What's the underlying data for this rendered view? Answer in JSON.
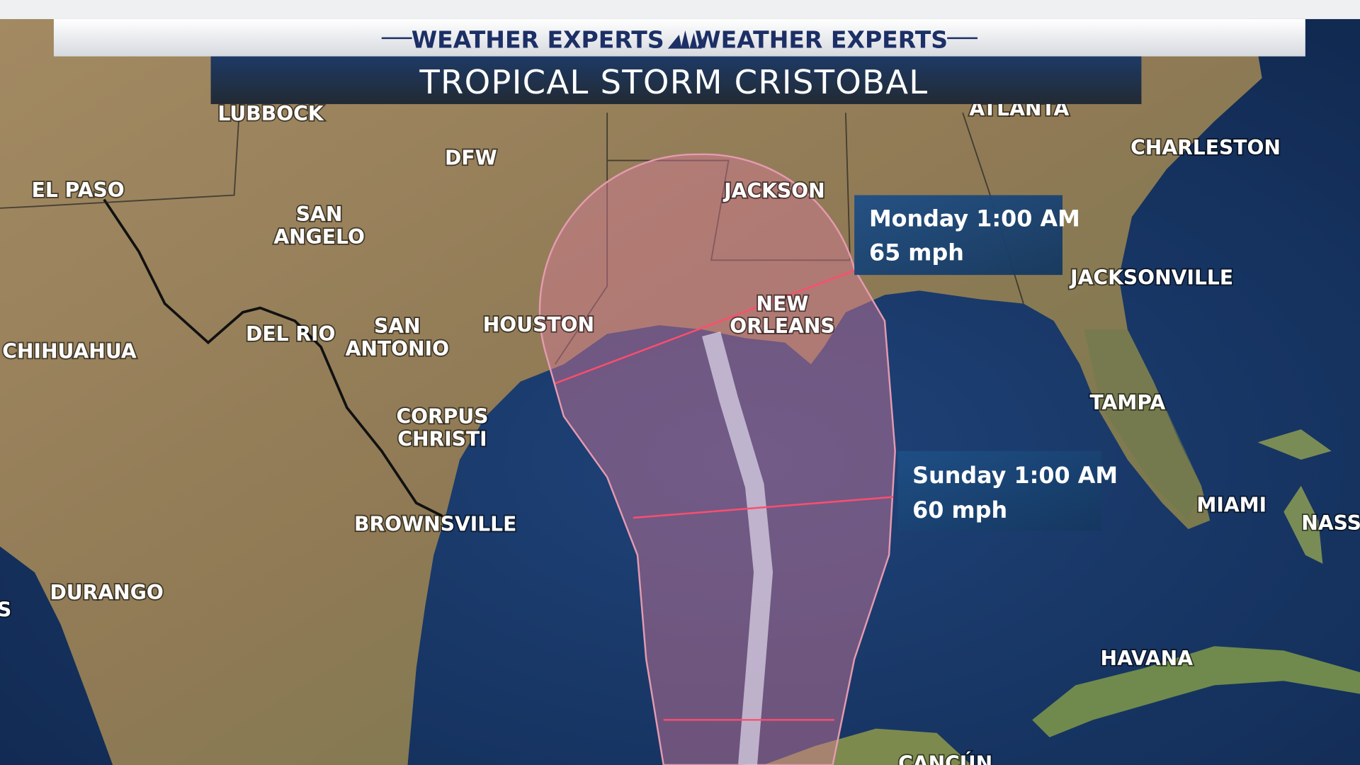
{
  "header": {
    "brand_left": "WEATHER EXPERTS",
    "brand_right": "WEATHER EXPERTS"
  },
  "title": "TROPICAL STORM CRISTOBAL",
  "forecasts": [
    {
      "time": "Monday 1:00 AM",
      "wind": "65 mph"
    },
    {
      "time": "Sunday 1:00 AM",
      "wind": "60 mph"
    }
  ],
  "cities": [
    [
      "LUBBOCK"
    ],
    [
      "ATLANTA"
    ],
    [
      "CHARLESTON"
    ],
    [
      "DFW"
    ],
    [
      "EL PASO"
    ],
    [
      "SAN",
      "ANGELO"
    ],
    [
      "JACKSON"
    ],
    [
      "JACKSONVILLE"
    ],
    [
      "NEW",
      "ORLEANS"
    ],
    [
      "DEL RIO"
    ],
    [
      "SAN",
      "ANTONIO"
    ],
    [
      "HOUSTON"
    ],
    [
      "CHIHUAHUA"
    ],
    [
      "CORPUS",
      "CHRISTI"
    ],
    [
      "TAMPA"
    ],
    [
      "BROWNSVILLE"
    ],
    [
      "MIAMI"
    ],
    [
      "NASS"
    ],
    [
      "DURANGO"
    ],
    [
      "HAVANA"
    ],
    [
      "CANCÚN"
    ],
    [
      "S"
    ]
  ]
}
